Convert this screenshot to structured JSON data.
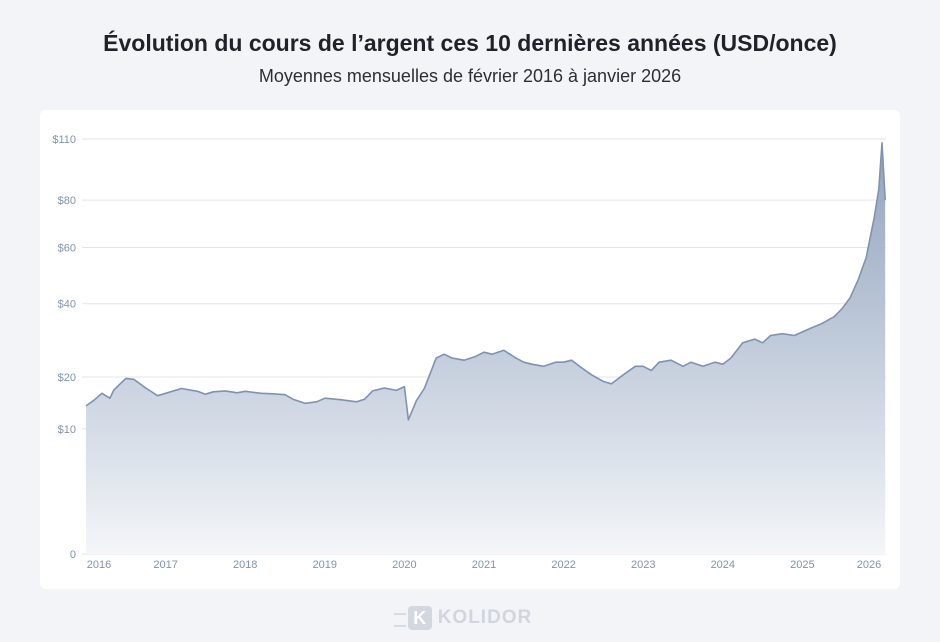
{
  "title": "Évolution du cours de l’argent ces 10 dernières années (USD/once)",
  "subtitle": "Moyennes mensuelles de février 2016 à janvier 2026",
  "brand": {
    "name": "KOLIDOR",
    "mark": "K",
    "color": "#cfd4dd"
  },
  "colors": {
    "line": "#7f93b1",
    "fill_top": "#8c9fbb",
    "fill_bottom": "#f4f6f9",
    "grid": "#e3e5ea",
    "tick": "#7f93b1"
  },
  "chart_data": {
    "type": "area",
    "title": "Évolution du cours de l’argent ces 10 dernières années (USD/once)",
    "subtitle": "Moyennes mensuelles de février 2016 à janvier 2026",
    "xlabel": "",
    "ylabel": "",
    "y_scale": "square-root",
    "ylim": [
      0,
      110
    ],
    "grid": true,
    "y_ticks": [
      {
        "value": 0,
        "label": "0"
      },
      {
        "value": 10,
        "label": "$10"
      },
      {
        "value": 20,
        "label": "$20"
      },
      {
        "value": 40,
        "label": "$40"
      },
      {
        "value": 60,
        "label": "$60"
      },
      {
        "value": 80,
        "label": "$80"
      },
      {
        "value": 110,
        "label": "$110"
      }
    ],
    "x_ticks": [
      "2016",
      "2017",
      "2018",
      "2019",
      "2020",
      "2021",
      "2022",
      "2023",
      "2024",
      "2025",
      "2026"
    ],
    "series": [
      {
        "values": [
          [
            2016.0,
            14.0
          ],
          [
            2016.1,
            15.1
          ],
          [
            2016.2,
            16.5
          ],
          [
            2016.3,
            15.5
          ],
          [
            2016.35,
            17.2
          ],
          [
            2016.5,
            19.7
          ],
          [
            2016.6,
            19.5
          ],
          [
            2016.75,
            17.6
          ],
          [
            2016.9,
            16.0
          ],
          [
            2017.0,
            16.5
          ],
          [
            2017.2,
            17.5
          ],
          [
            2017.4,
            16.9
          ],
          [
            2017.5,
            16.3
          ],
          [
            2017.6,
            16.8
          ],
          [
            2017.75,
            17.0
          ],
          [
            2017.9,
            16.6
          ],
          [
            2018.0,
            16.9
          ],
          [
            2018.2,
            16.5
          ],
          [
            2018.35,
            16.4
          ],
          [
            2018.5,
            16.2
          ],
          [
            2018.6,
            15.3
          ],
          [
            2018.75,
            14.5
          ],
          [
            2018.9,
            14.8
          ],
          [
            2019.0,
            15.5
          ],
          [
            2019.2,
            15.2
          ],
          [
            2019.4,
            14.8
          ],
          [
            2019.5,
            15.3
          ],
          [
            2019.6,
            17.0
          ],
          [
            2019.75,
            17.6
          ],
          [
            2019.9,
            17.1
          ],
          [
            2020.0,
            17.9
          ],
          [
            2020.05,
            11.5
          ],
          [
            2020.15,
            15.0
          ],
          [
            2020.25,
            17.5
          ],
          [
            2020.4,
            24.5
          ],
          [
            2020.5,
            25.5
          ],
          [
            2020.6,
            24.5
          ],
          [
            2020.75,
            24.0
          ],
          [
            2020.9,
            25.0
          ],
          [
            2021.0,
            26.0
          ],
          [
            2021.1,
            25.5
          ],
          [
            2021.25,
            26.5
          ],
          [
            2021.4,
            24.5
          ],
          [
            2021.5,
            23.5
          ],
          [
            2021.6,
            23.0
          ],
          [
            2021.75,
            22.5
          ],
          [
            2021.9,
            23.5
          ],
          [
            2022.0,
            23.5
          ],
          [
            2022.1,
            24.0
          ],
          [
            2022.2,
            22.5
          ],
          [
            2022.35,
            20.5
          ],
          [
            2022.5,
            19.0
          ],
          [
            2022.6,
            18.5
          ],
          [
            2022.75,
            20.5
          ],
          [
            2022.9,
            22.5
          ],
          [
            2023.0,
            22.5
          ],
          [
            2023.1,
            21.5
          ],
          [
            2023.2,
            23.5
          ],
          [
            2023.35,
            24.0
          ],
          [
            2023.5,
            22.5
          ],
          [
            2023.6,
            23.5
          ],
          [
            2023.75,
            22.5
          ],
          [
            2023.9,
            23.5
          ],
          [
            2024.0,
            23.0
          ],
          [
            2024.1,
            24.5
          ],
          [
            2024.25,
            28.5
          ],
          [
            2024.4,
            29.5
          ],
          [
            2024.5,
            28.5
          ],
          [
            2024.6,
            30.5
          ],
          [
            2024.75,
            31.0
          ],
          [
            2024.9,
            30.5
          ],
          [
            2025.0,
            31.5
          ],
          [
            2025.1,
            32.5
          ],
          [
            2025.25,
            34.0
          ],
          [
            2025.4,
            36.0
          ],
          [
            2025.5,
            38.5
          ],
          [
            2025.6,
            42.0
          ],
          [
            2025.7,
            48.0
          ],
          [
            2025.8,
            56.0
          ],
          [
            2025.9,
            72.0
          ],
          [
            2025.96,
            85.0
          ],
          [
            2026.0,
            108.0
          ],
          [
            2026.04,
            80.0
          ]
        ]
      }
    ]
  }
}
